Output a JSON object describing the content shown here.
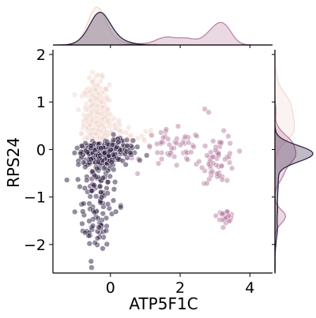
{
  "chart_data": {
    "type": "scatter",
    "title": "",
    "xlabel": "ATP5F1C",
    "ylabel": "RPS24",
    "xlim": [
      -1.65,
      4.65
    ],
    "ylim": [
      -2.6,
      2.1
    ],
    "xticks": [
      "0",
      "2",
      "4"
    ],
    "xtick_values": [
      0,
      2,
      4
    ],
    "yticks": [
      "2",
      "1",
      "0",
      "−1",
      "−2"
    ],
    "ytick_values": [
      2,
      1,
      0,
      -1,
      -2
    ],
    "grid": false,
    "legend": "none",
    "marginals": "kde (top and right)",
    "series": [
      {
        "color": "#f2d7cf",
        "clusters": [
          {
            "x": -0.4,
            "y": 0.75,
            "sx": 0.18,
            "sy": 0.35,
            "n": 320
          },
          {
            "x": -0.1,
            "y": 0.35,
            "sx": 0.35,
            "sy": 0.2,
            "n": 60
          },
          {
            "x": 0.6,
            "y": 0.25,
            "sx": 0.35,
            "sy": 0.1,
            "n": 15
          }
        ]
      },
      {
        "color": "#b87fa3",
        "clusters": [
          {
            "x": 1.8,
            "y": 0.0,
            "sx": 0.45,
            "sy": 0.2,
            "n": 50
          },
          {
            "x": 3.1,
            "y": -0.2,
            "sx": 0.25,
            "sy": 0.25,
            "n": 60
          },
          {
            "x": 3.3,
            "y": -1.4,
            "sx": 0.12,
            "sy": 0.06,
            "n": 25
          },
          {
            "x": 2.7,
            "y": 0.85,
            "sx": 0.05,
            "sy": 0.04,
            "n": 2
          }
        ]
      },
      {
        "color": "#2b1c3f",
        "clusters": [
          {
            "x": -0.3,
            "y": -0.1,
            "sx": 0.25,
            "sy": 0.12,
            "n": 380
          },
          {
            "x": -0.35,
            "y": -0.8,
            "sx": 0.3,
            "sy": 0.4,
            "n": 90
          },
          {
            "x": -0.45,
            "y": -1.7,
            "sx": 0.2,
            "sy": 0.25,
            "n": 35
          },
          {
            "x": 0.5,
            "y": 0.0,
            "sx": 0.3,
            "sy": 0.15,
            "n": 40
          }
        ]
      }
    ]
  }
}
